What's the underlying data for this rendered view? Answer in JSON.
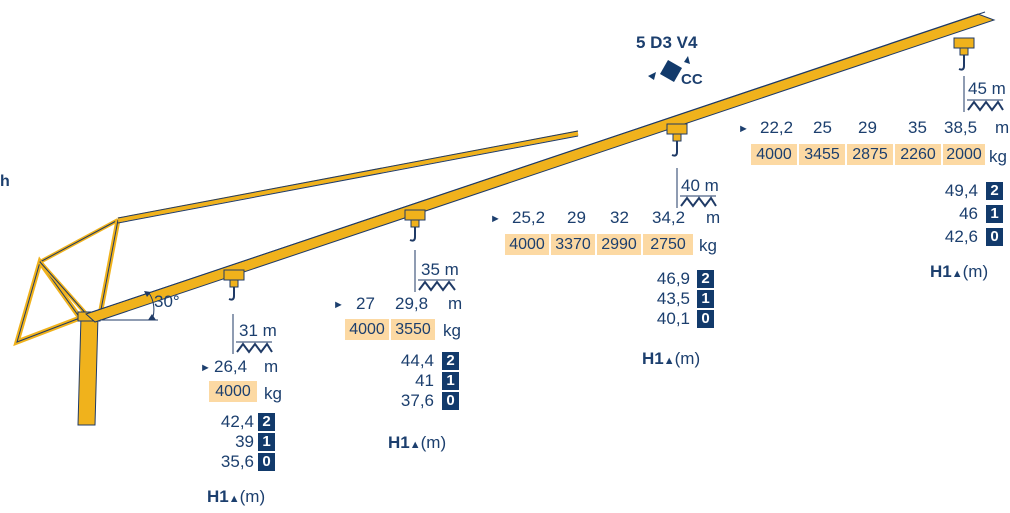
{
  "colors": {
    "mast": "#f0b21c",
    "outline": "#1f3a66",
    "load_bg": "#fcd9a3",
    "badge_bg": "#123a6b",
    "text": "#1c3f6e"
  },
  "cab_model": "5 D3 V4",
  "cab_code": "CC",
  "jib_angle": "30°",
  "left_mark": "h",
  "configs": [
    {
      "length": "31 m",
      "radius_unit": "m",
      "load_unit": "kg",
      "radii": [
        "26,4"
      ],
      "loads": [
        "4000"
      ],
      "heights": [
        {
          "value": "42,4",
          "badge": "2"
        },
        {
          "value": "39",
          "badge": "1"
        },
        {
          "value": "35,6",
          "badge": "0"
        }
      ],
      "h1_label": "H1",
      "h1_unit": "(m)"
    },
    {
      "length": "35 m",
      "radius_unit": "m",
      "load_unit": "kg",
      "radii": [
        "27",
        "29,8"
      ],
      "loads": [
        "4000",
        "3550"
      ],
      "heights": [
        {
          "value": "44,4",
          "badge": "2"
        },
        {
          "value": "41",
          "badge": "1"
        },
        {
          "value": "37,6",
          "badge": "0"
        }
      ],
      "h1_label": "H1",
      "h1_unit": "(m)"
    },
    {
      "length": "40 m",
      "radius_unit": "m",
      "load_unit": "kg",
      "radii": [
        "25,2",
        "29",
        "32",
        "34,2"
      ],
      "loads": [
        "4000",
        "3370",
        "2990",
        "2750"
      ],
      "heights": [
        {
          "value": "46,9",
          "badge": "2"
        },
        {
          "value": "43,5",
          "badge": "1"
        },
        {
          "value": "40,1",
          "badge": "0"
        }
      ],
      "h1_label": "H1",
      "h1_unit": "(m)"
    },
    {
      "length": "45 m",
      "radius_unit": "m",
      "load_unit": "kg",
      "radii": [
        "22,2",
        "25",
        "29",
        "35",
        "38,5"
      ],
      "loads": [
        "4000",
        "3455",
        "2875",
        "2260",
        "2000"
      ],
      "heights": [
        {
          "value": "49,4",
          "badge": "2"
        },
        {
          "value": "46",
          "badge": "1"
        },
        {
          "value": "42,6",
          "badge": "0"
        }
      ],
      "h1_label": "H1",
      "h1_unit": "(m)"
    }
  ]
}
